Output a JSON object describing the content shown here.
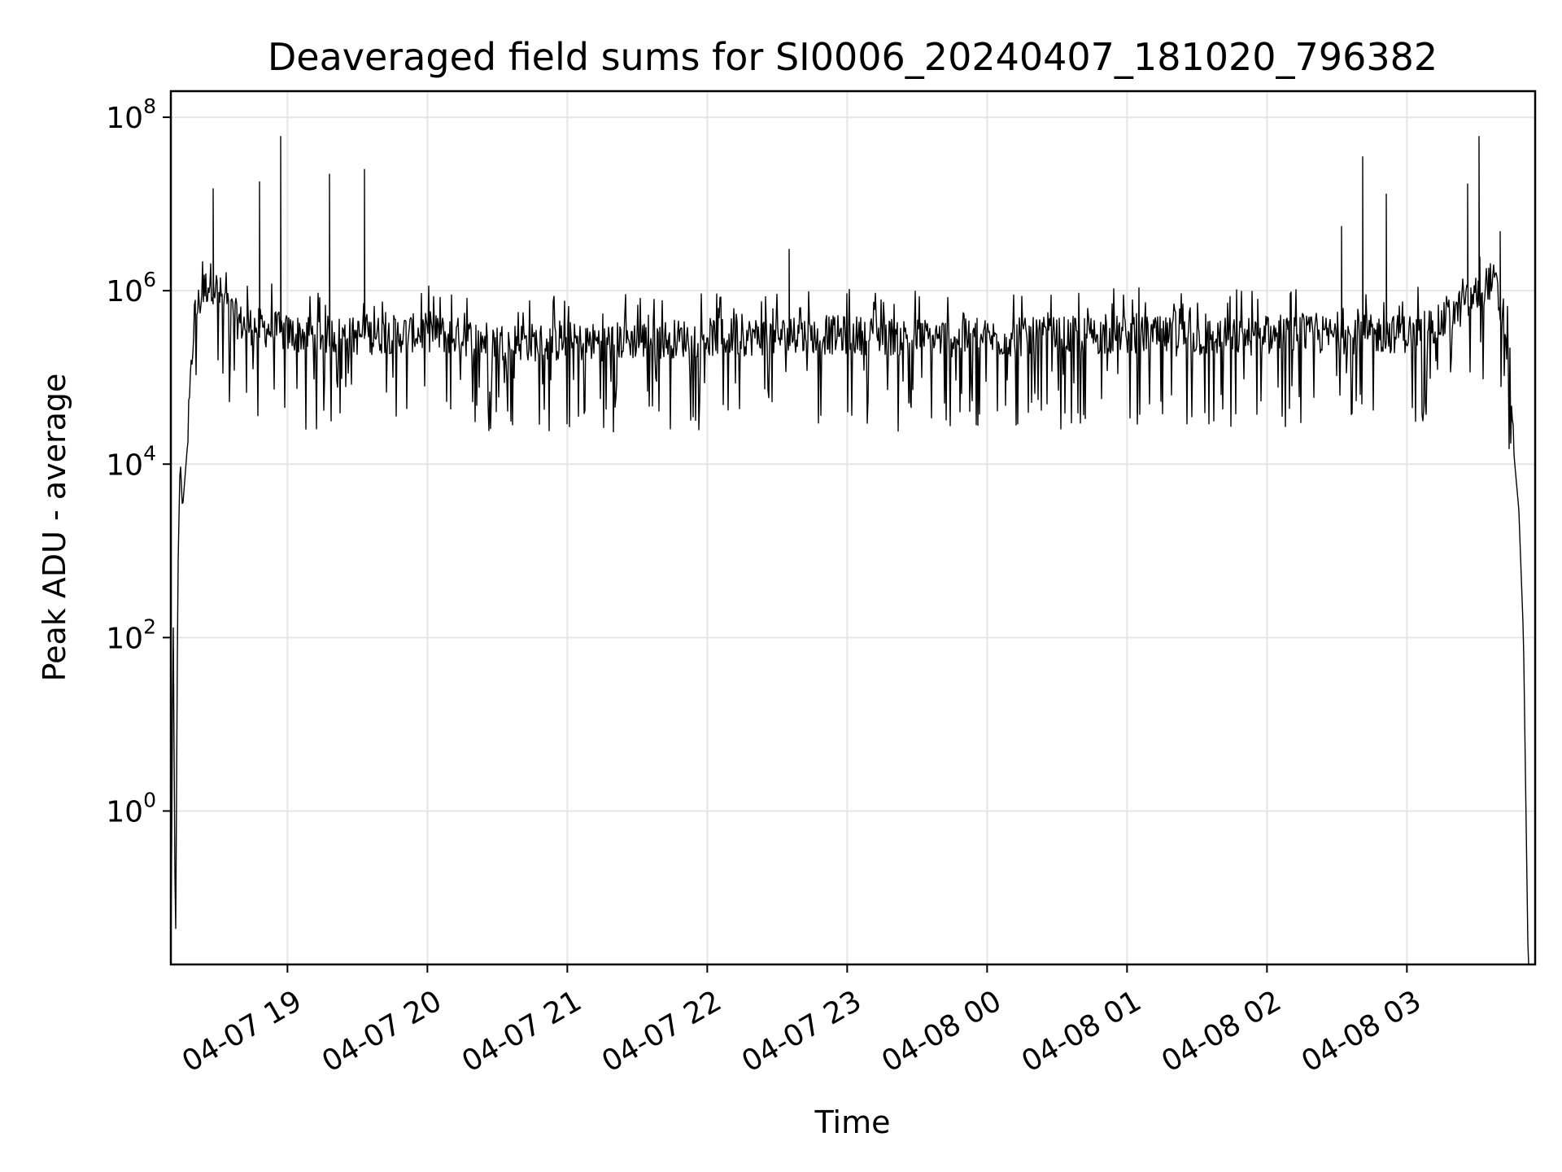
{
  "chart_data": {
    "type": "line",
    "title": "Deaveraged field sums for SI0006_20240407_181020_796382",
    "xlabel": "Time",
    "ylabel": "Peak ADU - average",
    "y_scale": "log",
    "grid": true,
    "line_color": "#000000",
    "grid_color": "#e6e6e6",
    "xlim": [
      "2024-04-07 18:10",
      "2024-04-08 03:55"
    ],
    "ylim": [
      0.017,
      200000000.0
    ],
    "x_ticks": [
      "2024-04-07 19:00",
      "2024-04-07 20:00",
      "2024-04-07 21:00",
      "2024-04-07 22:00",
      "2024-04-07 23:00",
      "2024-04-08 00:00",
      "2024-04-08 01:00",
      "2024-04-08 02:00",
      "2024-04-08 03:00"
    ],
    "x_tick_labels": [
      "04-07 19",
      "04-07 20",
      "04-07 21",
      "04-07 22",
      "04-07 23",
      "04-08 00",
      "04-08 01",
      "04-08 02",
      "04-08 03"
    ],
    "y_ticks": [
      1,
      100,
      10000,
      1000000,
      100000000
    ],
    "y_tick_labels": [
      {
        "base": "10",
        "exp": "0"
      },
      {
        "base": "10",
        "exp": "2"
      },
      {
        "base": "10",
        "exp": "4"
      },
      {
        "base": "10",
        "exp": "6"
      },
      {
        "base": "10",
        "exp": "8"
      }
    ],
    "series": [
      {
        "x": [
          "2024-04-07 18:10",
          "2024-04-07 18:11",
          "2024-04-07 18:12",
          "2024-04-07 18:13",
          "2024-04-07 18:14",
          "2024-04-07 18:15",
          "2024-04-07 18:17",
          "2024-04-07 18:20",
          "2024-04-07 18:24",
          "2024-04-07 18:27",
          "2024-04-07 18:30",
          "2024-04-07 18:35",
          "2024-04-07 18:40",
          "2024-04-07 18:47",
          "2024-04-07 18:55",
          "2024-04-07 19:00",
          "2024-04-07 19:30",
          "2024-04-07 20:00",
          "2024-04-07 20:30",
          "2024-04-07 21:00",
          "2024-04-07 21:30",
          "2024-04-07 22:00",
          "2024-04-07 22:30",
          "2024-04-07 23:00",
          "2024-04-07 23:30",
          "2024-04-08 00:00",
          "2024-04-08 00:30",
          "2024-04-08 01:00",
          "2024-04-08 01:30",
          "2024-04-08 02:00",
          "2024-04-08 02:30",
          "2024-04-08 03:00",
          "2024-04-08 03:15",
          "2024-04-08 03:30",
          "2024-04-08 03:35",
          "2024-04-08 03:38",
          "2024-04-08 03:42",
          "2024-04-08 03:44",
          "2024-04-08 03:46",
          "2024-04-08 03:48",
          "2024-04-08 03:50",
          "2024-04-08 03:52",
          "2024-04-08 03:53"
        ],
        "y": [
          0.017,
          200,
          0.017,
          500,
          12000,
          3000,
          15000,
          500000,
          1000000,
          1300000,
          1000000,
          600000,
          420000,
          380000,
          350000,
          320000,
          300000,
          330000,
          260000,
          250000,
          270000,
          290000,
          300000,
          310000,
          290000,
          280000,
          300000,
          310000,
          290000,
          300000,
          310000,
          320000,
          420000,
          900000,
          1300000,
          1200000,
          300000,
          150000,
          12000,
          3000,
          100,
          0.017,
          0.017
        ],
        "spikes": [
          {
            "x": "2024-04-07 18:28",
            "y": 15000000
          },
          {
            "x": "2024-04-07 18:48",
            "y": 18000000
          },
          {
            "x": "2024-04-07 18:57",
            "y": 60000000
          },
          {
            "x": "2024-04-07 19:18",
            "y": 22000000
          },
          {
            "x": "2024-04-07 19:33",
            "y": 25000000
          },
          {
            "x": "2024-04-07 22:35",
            "y": 3000000
          },
          {
            "x": "2024-04-08 02:32",
            "y": 5500000
          },
          {
            "x": "2024-04-08 02:41",
            "y": 35000000
          },
          {
            "x": "2024-04-08 02:51",
            "y": 13000000
          },
          {
            "x": "2024-04-08 03:26",
            "y": 17000000
          },
          {
            "x": "2024-04-08 03:31",
            "y": 60000000
          },
          {
            "x": "2024-04-08 03:40",
            "y": 4800000
          }
        ]
      }
    ]
  }
}
